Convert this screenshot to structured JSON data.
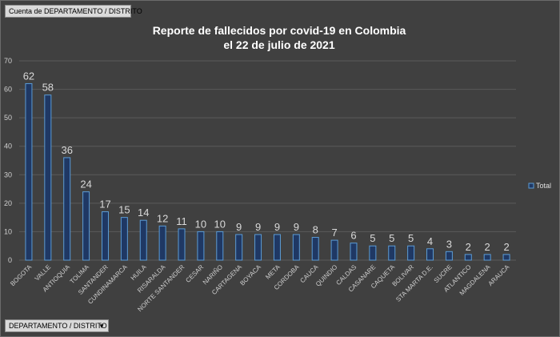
{
  "report_filter_label": "Cuenta de DEPARTAMENTO  / DISTRITO",
  "axis_field_label": "DEPARTAMENTO  / DISTRITO",
  "axis_field_arrow": "▼",
  "colors": {
    "background": "#404040",
    "bar_fill": "#1f3864",
    "bar_stroke": "#5b9bd5",
    "grid": "#5a5a5a"
  },
  "chart_data": {
    "type": "bar",
    "title_lines": [
      "Reporte de fallecidos por covid-19 en Colombia",
      "el 22 de julio de 2021"
    ],
    "categories": [
      "BOGOTA",
      "VALLE",
      "ANTIOQUIA",
      "TOLIMA",
      "SANTANDER",
      "CUNDINAMARCA",
      "HUILA",
      "RISARALDA",
      "NORTE SANTANDER",
      "CESAR",
      "NARIÑO",
      "CARTAGENA",
      "BOYACA",
      "META",
      "CORDOBA",
      "CAUCA",
      "QUINDIO",
      "CALDAS",
      "CASANARE",
      "CAQUETA",
      "BOLIVAR",
      "STA MARTA D.E.",
      "SUCRE",
      "ATLANTICO",
      "MAGDALENA",
      "ARAUCA"
    ],
    "series": [
      {
        "name": "Total",
        "values": [
          62,
          58,
          36,
          24,
          17,
          15,
          14,
          12,
          11,
          10,
          10,
          9,
          9,
          9,
          9,
          8,
          7,
          6,
          5,
          5,
          5,
          4,
          3,
          2,
          2,
          2
        ]
      }
    ],
    "ylim": [
      0,
      70
    ],
    "yticks": [
      0,
      10,
      20,
      30,
      40,
      50,
      60,
      70
    ],
    "grid": true,
    "legend_position": "right",
    "xlabel": "",
    "ylabel": ""
  }
}
